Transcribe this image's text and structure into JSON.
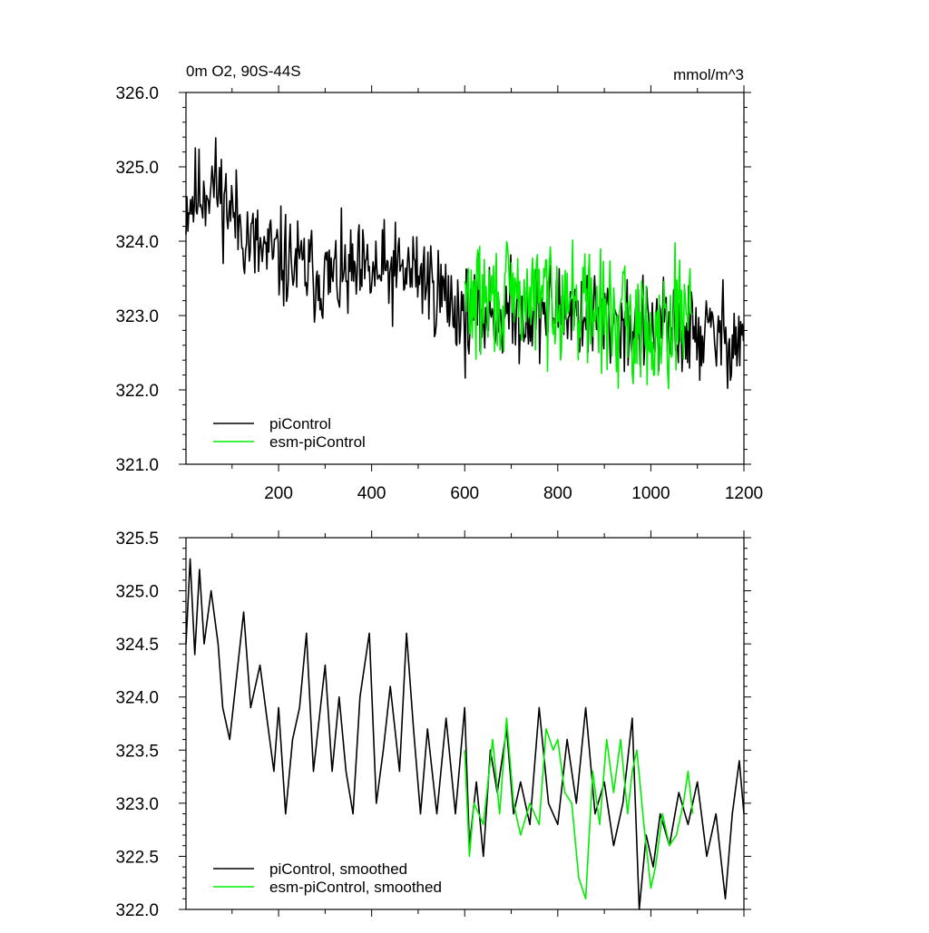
{
  "chart_data": [
    {
      "type": "line",
      "title_left": "0m O2, 90S-44S",
      "title_right": "mmol/m^3",
      "xlim": [
        1,
        1200
      ],
      "ylim": [
        321.0,
        326.0
      ],
      "x_ticks": [
        200,
        400,
        600,
        800,
        1000,
        1200
      ],
      "x_tick_labels": [
        "200",
        "400",
        "600",
        "800",
        "1000",
        "1200"
      ],
      "y_ticks": [
        321.0,
        322.0,
        323.0,
        324.0,
        325.0,
        326.0
      ],
      "y_tick_labels": [
        "321.0",
        "322.0",
        "323.0",
        "324.0",
        "325.0",
        "326.0"
      ],
      "legend_position": "bottom-left",
      "grid": false,
      "series": [
        {
          "name": "piControl",
          "color": "#000000",
          "x_range": [
            1,
            1200
          ],
          "trend_points": [
            [
              1,
              324.5
            ],
            [
              60,
              324.8
            ],
            [
              150,
              323.9
            ],
            [
              300,
              323.5
            ],
            [
              500,
              323.6
            ],
            [
              600,
              323.0
            ],
            [
              800,
              323.1
            ],
            [
              1000,
              322.8
            ],
            [
              1200,
              322.7
            ]
          ],
          "noise_amplitude": 0.5,
          "seed": 11
        },
        {
          "name": "esm-piControl",
          "color": "#00ee00",
          "x_range": [
            600,
            1090
          ],
          "trend_points": [
            [
              600,
              323.2
            ],
            [
              700,
              323.2
            ],
            [
              800,
              323.3
            ],
            [
              900,
              323.0
            ],
            [
              1000,
              322.8
            ],
            [
              1090,
              323.2
            ]
          ],
          "noise_amplitude": 0.6,
          "seed": 29
        }
      ]
    },
    {
      "type": "line",
      "xlim": [
        1,
        1200
      ],
      "ylim": [
        322.0,
        325.5
      ],
      "x_ticks": [
        200,
        400,
        600,
        800,
        1000,
        1200
      ],
      "y_ticks": [
        322.0,
        322.5,
        323.0,
        323.5,
        324.0,
        324.5,
        325.0,
        325.5
      ],
      "y_tick_labels": [
        "322.0",
        "322.5",
        "323.0",
        "323.5",
        "324.0",
        "324.5",
        "325.0",
        "325.5"
      ],
      "legend_position": "bottom-left",
      "grid": false,
      "series": [
        {
          "name": "piControl, smoothed",
          "color": "#000000",
          "points": [
            [
              1,
              324.5
            ],
            [
              10,
              325.3
            ],
            [
              20,
              324.4
            ],
            [
              30,
              325.2
            ],
            [
              40,
              324.5
            ],
            [
              55,
              325.0
            ],
            [
              70,
              324.5
            ],
            [
              80,
              323.9
            ],
            [
              95,
              323.6
            ],
            [
              110,
              324.2
            ],
            [
              125,
              324.8
            ],
            [
              140,
              323.9
            ],
            [
              160,
              324.3
            ],
            [
              175,
              323.8
            ],
            [
              190,
              323.3
            ],
            [
              200,
              323.9
            ],
            [
              215,
              322.9
            ],
            [
              230,
              323.6
            ],
            [
              245,
              323.9
            ],
            [
              260,
              324.6
            ],
            [
              275,
              323.3
            ],
            [
              290,
              323.9
            ],
            [
              300,
              324.3
            ],
            [
              315,
              323.3
            ],
            [
              330,
              324.0
            ],
            [
              345,
              323.3
            ],
            [
              360,
              322.9
            ],
            [
              375,
              324.0
            ],
            [
              395,
              324.6
            ],
            [
              410,
              323.0
            ],
            [
              425,
              323.5
            ],
            [
              440,
              324.1
            ],
            [
              460,
              323.3
            ],
            [
              475,
              324.6
            ],
            [
              490,
              323.7
            ],
            [
              505,
              322.9
            ],
            [
              520,
              323.7
            ],
            [
              540,
              322.9
            ],
            [
              560,
              323.8
            ],
            [
              580,
              322.9
            ],
            [
              600,
              323.9
            ],
            [
              610,
              322.6
            ],
            [
              625,
              323.2
            ],
            [
              640,
              322.5
            ],
            [
              655,
              323.5
            ],
            [
              670,
              323.1
            ],
            [
              690,
              323.7
            ],
            [
              705,
              322.9
            ],
            [
              720,
              323.2
            ],
            [
              740,
              322.8
            ],
            [
              760,
              323.9
            ],
            [
              780,
              323.0
            ],
            [
              800,
              322.8
            ],
            [
              820,
              323.6
            ],
            [
              840,
              323.0
            ],
            [
              860,
              323.9
            ],
            [
              880,
              322.9
            ],
            [
              900,
              323.2
            ],
            [
              920,
              322.6
            ],
            [
              940,
              323.0
            ],
            [
              960,
              323.8
            ],
            [
              975,
              322.0
            ],
            [
              990,
              322.7
            ],
            [
              1005,
              322.4
            ],
            [
              1020,
              322.9
            ],
            [
              1040,
              322.6
            ],
            [
              1060,
              323.1
            ],
            [
              1080,
              322.8
            ],
            [
              1100,
              323.2
            ],
            [
              1120,
              322.5
            ],
            [
              1140,
              322.9
            ],
            [
              1160,
              322.1
            ],
            [
              1175,
              322.9
            ],
            [
              1190,
              323.4
            ],
            [
              1200,
              322.9
            ]
          ]
        },
        {
          "name": "esm-piControl, smoothed",
          "color": "#00ee00",
          "points": [
            [
              600,
              323.5
            ],
            [
              610,
              322.5
            ],
            [
              620,
              323.0
            ],
            [
              640,
              322.8
            ],
            [
              660,
              323.6
            ],
            [
              675,
              322.9
            ],
            [
              690,
              323.8
            ],
            [
              705,
              323.0
            ],
            [
              720,
              322.7
            ],
            [
              740,
              323.0
            ],
            [
              760,
              322.8
            ],
            [
              775,
              323.7
            ],
            [
              790,
              323.5
            ],
            [
              800,
              323.6
            ],
            [
              815,
              323.1
            ],
            [
              830,
              323.0
            ],
            [
              845,
              322.3
            ],
            [
              860,
              322.1
            ],
            [
              875,
              323.3
            ],
            [
              890,
              322.8
            ],
            [
              905,
              323.6
            ],
            [
              920,
              323.1
            ],
            [
              935,
              323.6
            ],
            [
              950,
              322.9
            ],
            [
              960,
              323.3
            ],
            [
              970,
              323.5
            ],
            [
              985,
              322.8
            ],
            [
              1000,
              322.2
            ],
            [
              1010,
              322.4
            ],
            [
              1025,
              322.9
            ],
            [
              1040,
              322.6
            ],
            [
              1055,
              322.7
            ],
            [
              1070,
              323.0
            ],
            [
              1080,
              323.3
            ],
            [
              1090,
              322.9
            ]
          ]
        }
      ]
    }
  ]
}
